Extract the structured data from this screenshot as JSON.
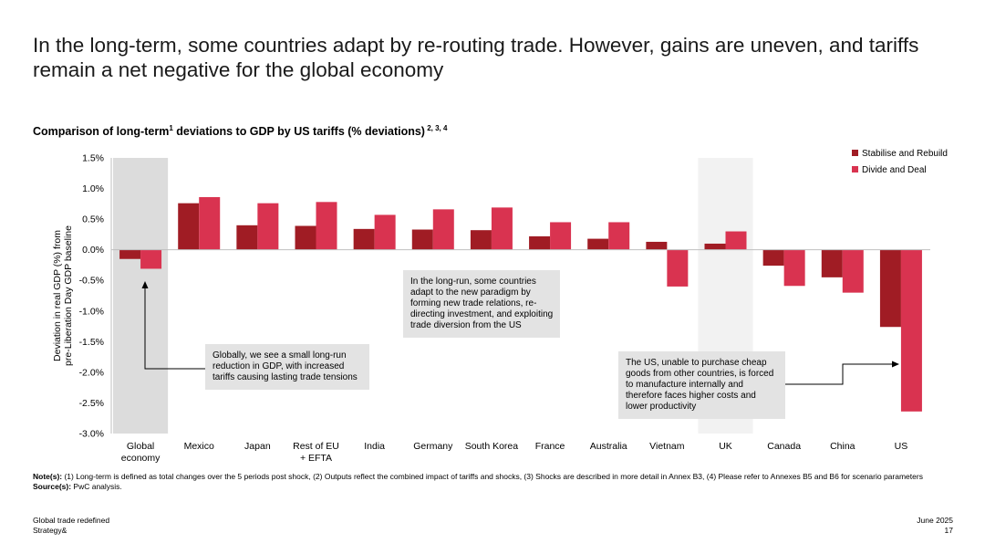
{
  "headline": "In the long-term, some countries adapt by re-routing trade. However, gains are uneven, and tariffs remain a net negative for the global economy",
  "chart_title": {
    "main": "Comparison of long-term",
    "sup1": "1",
    "rest": " deviations to GDP by US tariffs (% deviations)",
    "sup2": " 2, 3, 4"
  },
  "chart_data": {
    "type": "bar",
    "ylabel_line1": "Deviation in real GDP (%) from",
    "ylabel_line2": "pre-Liberation Day GDP baseline",
    "ylim": [
      -3.0,
      1.5
    ],
    "yticks": [
      "1.5%",
      "1.0%",
      "0.5%",
      "0.0%",
      "-0.5%",
      "-1.0%",
      "-1.5%",
      "-2.0%",
      "-2.5%",
      "-3.0%"
    ],
    "ytick_values": [
      1.5,
      1.0,
      0.5,
      0.0,
      -0.5,
      -1.0,
      -1.5,
      -2.0,
      -2.5,
      -3.0
    ],
    "categories": [
      [
        "Global",
        "economy"
      ],
      [
        "Mexico"
      ],
      [
        "Japan"
      ],
      [
        "Rest of EU",
        "+ EFTA"
      ],
      [
        "India"
      ],
      [
        "Germany"
      ],
      [
        "South Korea"
      ],
      [
        "France"
      ],
      [
        "Australia"
      ],
      [
        "Vietnam"
      ],
      [
        "UK"
      ],
      [
        "Canada"
      ],
      [
        "China"
      ],
      [
        "US"
      ]
    ],
    "highlight": [
      {
        "category_index": 0,
        "color": "#dcdcdc"
      },
      {
        "category_index": 10,
        "color": "#f2f2f2"
      }
    ],
    "series": [
      {
        "name": "Stabilise and Rebuild",
        "color": "#a01c24",
        "values": [
          -0.15,
          0.76,
          0.4,
          0.39,
          0.34,
          0.33,
          0.32,
          0.22,
          0.18,
          0.13,
          0.1,
          -0.26,
          -0.45,
          -1.26
        ]
      },
      {
        "name": "Divide and Deal",
        "color": "#d93350",
        "values": [
          -0.31,
          0.86,
          0.76,
          0.78,
          0.57,
          0.66,
          0.69,
          0.45,
          0.45,
          -0.6,
          0.3,
          -0.59,
          -0.7,
          -2.64
        ]
      }
    ],
    "legend_position": "top-right",
    "grid": false,
    "annotations": [
      {
        "lines": [
          "Globally, we see a small long-run",
          "reduction in GDP, with increased",
          "tariffs causing lasting trade tensions"
        ],
        "arrow_to": "Global"
      },
      {
        "lines": [
          "In the long-run, some countries",
          "adapt to the new paradigm by",
          "forming new trade relations, re-",
          "directing investment, and exploiting",
          "trade diversion from the US"
        ]
      },
      {
        "lines": [
          "The US, unable to purchase cheap",
          "goods from other countries, is forced",
          "to manufacture internally and",
          "therefore faces higher costs and",
          "lower productivity"
        ],
        "arrow_to": "US"
      }
    ]
  },
  "notes": {
    "label": "Note(s):",
    "text": " (1) Long-term is defined as total changes over the 5 periods post shock, (2) Outputs reflect the combined impact of tariffs and shocks, (3) Shocks are described in more detail in Annex B3, (4) Please refer to Annexes B5 and B6 for scenario parameters",
    "source_label": "Source(s):",
    "source_text": " PwC analysis."
  },
  "footer": {
    "left_line1": "Global trade redefined",
    "left_line2": "Strategy&",
    "right_line1": "June 2025",
    "right_line2": "17"
  }
}
